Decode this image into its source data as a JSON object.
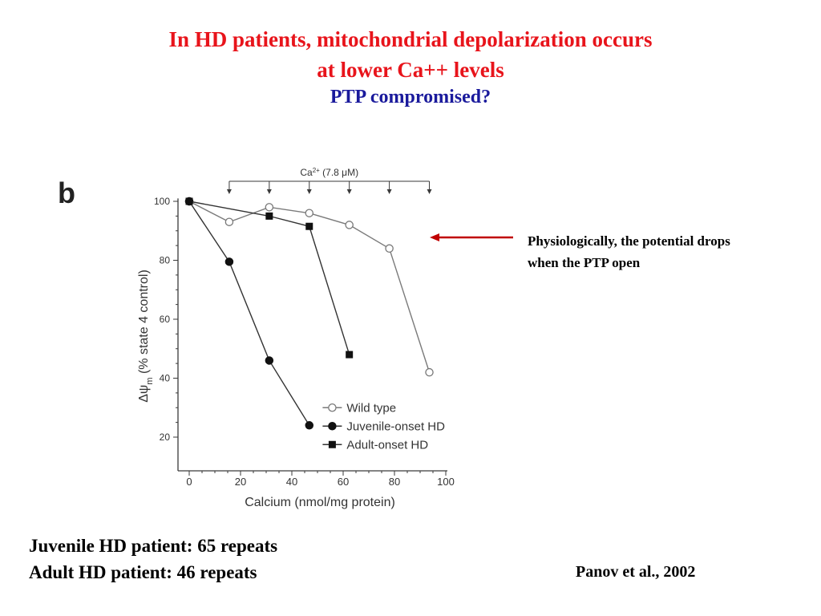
{
  "slide": {
    "title_line1": "In HD patients, mitochondrial depolarization occurs",
    "title_line2": "at lower Ca++ levels",
    "subtitle": "PTP compromised?",
    "panel_label": "b",
    "annotation_line1": "Physiologically, the potential drops",
    "annotation_line2": "when the PTP open",
    "note_line1": "Juvenile HD patient: 65 repeats",
    "note_line2": "Adult HD patient: 46 repeats",
    "citation": "Panov et al., 2002",
    "colors": {
      "title": "#e8141b",
      "subtitle": "#1a1a9c",
      "arrow": "#c00000"
    }
  },
  "chart_data": {
    "type": "line",
    "title": "",
    "xlabel": "Calcium (nmol/mg protein)",
    "ylabel": "Δψ",
    "ylabel_subscript": "m",
    "ylabel_suffix": " (% state 4 control)",
    "xlim": [
      0,
      100
    ],
    "ylim": [
      15,
      102
    ],
    "xticks": [
      0,
      20,
      40,
      60,
      80,
      100
    ],
    "yticks": [
      20,
      40,
      60,
      80,
      100
    ],
    "grid": false,
    "legend_position": "bottom-right",
    "addition_label": "Ca",
    "addition_label_sup": "2+",
    "addition_label_rest": " (7.8 μM)",
    "addition_points": [
      15.6,
      31.2,
      46.8,
      62.4,
      78,
      93.6
    ],
    "series": [
      {
        "name": "Wild type",
        "marker": "open-circle",
        "x": [
          0,
          15.6,
          31.2,
          46.8,
          62.4,
          78,
          93.6
        ],
        "y": [
          100,
          93,
          98,
          96,
          92,
          84,
          42
        ]
      },
      {
        "name": "Juvenile-onset HD",
        "marker": "filled-circle",
        "x": [
          0,
          15.6,
          31.2,
          46.8
        ],
        "y": [
          100,
          79.5,
          46,
          24
        ]
      },
      {
        "name": "Adult-onset HD",
        "marker": "filled-square",
        "x": [
          0,
          31.2,
          46.8,
          62.4
        ],
        "y": [
          100,
          95,
          91.5,
          48
        ]
      }
    ]
  }
}
